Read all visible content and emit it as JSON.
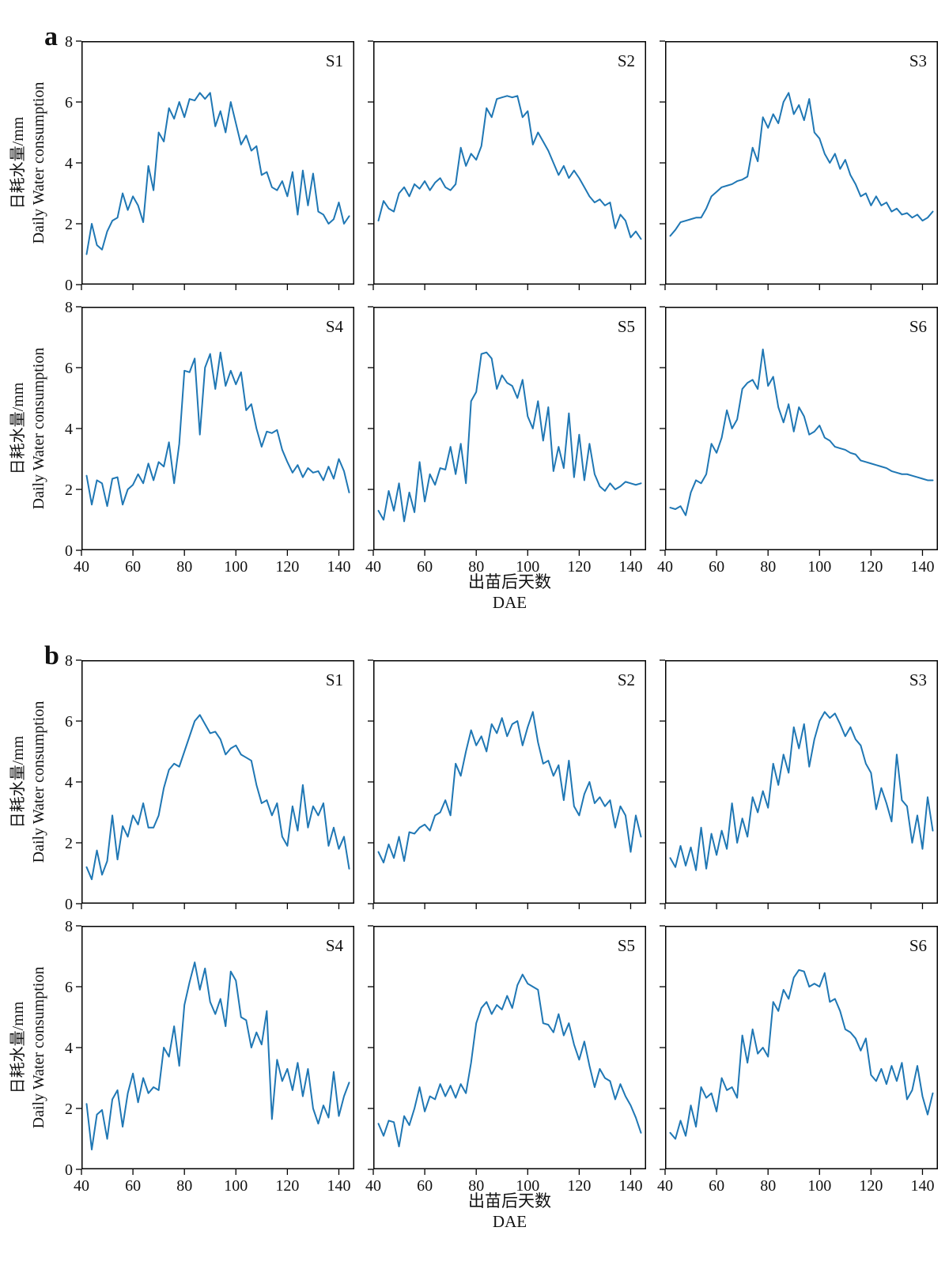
{
  "chart_data": [
    {
      "type": "line",
      "panel_label": "a",
      "xlabel_cn": "出苗后天数",
      "xlabel_en": "DAE",
      "ylabel_cn": "日耗水量/mm",
      "ylabel_en": "Daily Water consumption",
      "xlim": [
        40,
        146
      ],
      "ylim": [
        0,
        8
      ],
      "xticks": [
        40,
        60,
        80,
        100,
        120,
        140
      ],
      "yticks": [
        0,
        2,
        4,
        6,
        8
      ],
      "x_start": 42,
      "x_step": 2,
      "line_color": "#1f77b4",
      "legend": "none",
      "grid": false,
      "subplots": [
        {
          "label": "S1",
          "y": [
            1.0,
            2.0,
            1.3,
            1.15,
            1.75,
            2.1,
            2.2,
            3.0,
            2.45,
            2.9,
            2.6,
            2.05,
            3.9,
            3.1,
            5.0,
            4.7,
            5.8,
            5.45,
            6.0,
            5.5,
            6.1,
            6.05,
            6.3,
            6.1,
            6.3,
            5.2,
            5.7,
            5.0,
            6.0,
            5.3,
            4.6,
            4.9,
            4.4,
            4.55,
            3.6,
            3.7,
            3.2,
            3.1,
            3.4,
            2.9,
            3.7,
            2.3,
            3.75,
            2.6,
            3.65,
            2.4,
            2.3,
            2.0,
            2.15,
            2.7,
            2.0,
            2.25
          ]
        },
        {
          "label": "S2",
          "y": [
            2.1,
            2.75,
            2.5,
            2.4,
            3.0,
            3.2,
            2.9,
            3.3,
            3.15,
            3.4,
            3.1,
            3.35,
            3.5,
            3.2,
            3.1,
            3.3,
            4.5,
            3.9,
            4.3,
            4.1,
            4.55,
            5.8,
            5.5,
            6.1,
            6.15,
            6.2,
            6.15,
            6.2,
            5.5,
            5.7,
            4.6,
            5.0,
            4.7,
            4.4,
            4.0,
            3.6,
            3.9,
            3.5,
            3.75,
            3.5,
            3.2,
            2.9,
            2.7,
            2.8,
            2.6,
            2.7,
            1.85,
            2.3,
            2.1,
            1.55,
            1.75,
            1.5
          ]
        },
        {
          "label": "S3",
          "y": [
            1.6,
            1.8,
            2.05,
            2.1,
            2.15,
            2.2,
            2.2,
            2.5,
            2.9,
            3.05,
            3.2,
            3.25,
            3.3,
            3.4,
            3.45,
            3.55,
            4.5,
            4.05,
            5.5,
            5.15,
            5.6,
            5.3,
            6.0,
            6.3,
            5.6,
            5.9,
            5.4,
            6.1,
            5.0,
            4.8,
            4.3,
            4.0,
            4.3,
            3.8,
            4.1,
            3.6,
            3.3,
            2.9,
            3.0,
            2.6,
            2.9,
            2.6,
            2.7,
            2.4,
            2.5,
            2.3,
            2.35,
            2.2,
            2.3,
            2.1,
            2.2,
            2.4
          ]
        },
        {
          "label": "S4",
          "y": [
            2.45,
            1.5,
            2.3,
            2.2,
            1.45,
            2.35,
            2.4,
            1.5,
            2.0,
            2.15,
            2.5,
            2.2,
            2.85,
            2.3,
            2.9,
            2.75,
            3.55,
            2.2,
            3.5,
            5.9,
            5.85,
            6.3,
            3.8,
            6.0,
            6.45,
            5.3,
            6.5,
            5.4,
            5.9,
            5.45,
            5.85,
            4.6,
            4.8,
            4.0,
            3.4,
            3.9,
            3.85,
            3.95,
            3.3,
            2.9,
            2.55,
            2.8,
            2.4,
            2.7,
            2.55,
            2.6,
            2.3,
            2.75,
            2.35,
            3.0,
            2.6,
            1.9
          ]
        },
        {
          "label": "S5",
          "y": [
            1.3,
            1.0,
            1.95,
            1.3,
            2.2,
            0.95,
            1.9,
            1.25,
            2.9,
            1.6,
            2.5,
            2.15,
            2.7,
            2.65,
            3.4,
            2.5,
            3.5,
            2.2,
            4.9,
            5.2,
            6.45,
            6.5,
            6.3,
            5.3,
            5.75,
            5.5,
            5.4,
            5.0,
            5.6,
            4.4,
            4.0,
            4.9,
            3.6,
            4.7,
            2.6,
            3.4,
            2.7,
            4.5,
            2.4,
            3.8,
            2.3,
            3.5,
            2.5,
            2.1,
            1.95,
            2.2,
            2.0,
            2.1,
            2.25,
            2.2,
            2.15,
            2.2
          ]
        },
        {
          "label": "S6",
          "y": [
            1.4,
            1.35,
            1.45,
            1.15,
            1.9,
            2.3,
            2.2,
            2.5,
            3.5,
            3.2,
            3.7,
            4.6,
            4.0,
            4.3,
            5.3,
            5.5,
            5.6,
            5.3,
            6.6,
            5.4,
            5.7,
            4.7,
            4.2,
            4.8,
            3.9,
            4.7,
            4.4,
            3.8,
            3.9,
            4.1,
            3.7,
            3.6,
            3.4,
            3.35,
            3.3,
            3.2,
            3.15,
            2.95,
            2.9,
            2.85,
            2.8,
            2.75,
            2.7,
            2.6,
            2.55,
            2.5,
            2.5,
            2.45,
            2.4,
            2.35,
            2.3,
            2.3
          ]
        }
      ]
    },
    {
      "type": "line",
      "panel_label": "b",
      "xlabel_cn": "出苗后天数",
      "xlabel_en": "DAE",
      "ylabel_cn": "日耗水量/mm",
      "ylabel_en": "Daily Water consumption",
      "xlim": [
        40,
        146
      ],
      "ylim": [
        0,
        8
      ],
      "xticks": [
        40,
        60,
        80,
        100,
        120,
        140
      ],
      "yticks": [
        0,
        2,
        4,
        6,
        8
      ],
      "x_start": 42,
      "x_step": 2,
      "line_color": "#1f77b4",
      "legend": "none",
      "grid": false,
      "subplots": [
        {
          "label": "S1",
          "y": [
            1.2,
            0.8,
            1.75,
            0.95,
            1.4,
            2.9,
            1.45,
            2.55,
            2.2,
            2.9,
            2.6,
            3.3,
            2.5,
            2.5,
            2.9,
            3.8,
            4.4,
            4.6,
            4.5,
            5.0,
            5.5,
            6.0,
            6.2,
            5.9,
            5.6,
            5.65,
            5.4,
            4.9,
            5.1,
            5.2,
            4.9,
            4.8,
            4.7,
            3.9,
            3.3,
            3.4,
            2.9,
            3.3,
            2.2,
            1.9,
            3.2,
            2.4,
            3.9,
            2.5,
            3.2,
            2.9,
            3.3,
            1.9,
            2.5,
            1.8,
            2.2,
            1.15
          ]
        },
        {
          "label": "S2",
          "y": [
            1.7,
            1.35,
            1.95,
            1.5,
            2.2,
            1.4,
            2.35,
            2.3,
            2.5,
            2.6,
            2.4,
            2.9,
            3.0,
            3.4,
            2.9,
            4.6,
            4.2,
            5.0,
            5.7,
            5.2,
            5.5,
            5.0,
            5.9,
            5.6,
            6.1,
            5.5,
            5.9,
            6.0,
            5.2,
            5.8,
            6.3,
            5.3,
            4.6,
            4.7,
            4.2,
            4.55,
            3.4,
            4.7,
            3.2,
            2.9,
            3.6,
            4.0,
            3.3,
            3.5,
            3.2,
            3.4,
            2.5,
            3.2,
            2.9,
            1.7,
            2.9,
            2.2
          ]
        },
        {
          "label": "S3",
          "y": [
            1.5,
            1.2,
            1.9,
            1.25,
            1.85,
            1.1,
            2.5,
            1.15,
            2.3,
            1.6,
            2.4,
            1.8,
            3.3,
            2.0,
            2.8,
            2.2,
            3.5,
            3.0,
            3.7,
            3.15,
            4.6,
            3.9,
            4.9,
            4.3,
            5.8,
            5.1,
            5.9,
            4.5,
            5.4,
            6.0,
            6.3,
            6.1,
            6.25,
            5.9,
            5.5,
            5.8,
            5.4,
            5.2,
            4.6,
            4.3,
            3.1,
            3.8,
            3.3,
            2.7,
            4.9,
            3.4,
            3.2,
            2.0,
            2.9,
            1.8,
            3.5,
            2.4
          ]
        },
        {
          "label": "S4",
          "y": [
            2.15,
            0.65,
            1.8,
            1.95,
            1.0,
            2.3,
            2.6,
            1.4,
            2.5,
            3.15,
            2.2,
            3.0,
            2.5,
            2.7,
            2.6,
            4.0,
            3.7,
            4.7,
            3.4,
            5.4,
            6.15,
            6.8,
            5.9,
            6.6,
            5.5,
            5.1,
            5.6,
            4.7,
            6.5,
            6.2,
            5.0,
            4.9,
            4.0,
            4.5,
            4.1,
            5.2,
            1.65,
            3.6,
            2.9,
            3.3,
            2.6,
            3.5,
            2.4,
            3.3,
            2.0,
            1.5,
            2.1,
            1.7,
            3.2,
            1.75,
            2.4,
            2.85
          ]
        },
        {
          "label": "S5",
          "y": [
            1.5,
            1.1,
            1.6,
            1.55,
            0.75,
            1.75,
            1.45,
            2.0,
            2.7,
            1.9,
            2.4,
            2.3,
            2.8,
            2.4,
            2.75,
            2.35,
            2.8,
            2.5,
            3.5,
            4.8,
            5.3,
            5.5,
            5.1,
            5.4,
            5.25,
            5.7,
            5.3,
            6.05,
            6.4,
            6.1,
            6.0,
            5.9,
            4.8,
            4.75,
            4.5,
            5.1,
            4.4,
            4.8,
            4.1,
            3.6,
            4.2,
            3.4,
            2.7,
            3.3,
            3.0,
            2.9,
            2.3,
            2.8,
            2.4,
            2.1,
            1.7,
            1.2
          ]
        },
        {
          "label": "S6",
          "y": [
            1.2,
            1.0,
            1.6,
            1.1,
            2.1,
            1.4,
            2.7,
            2.35,
            2.5,
            1.9,
            3.0,
            2.6,
            2.7,
            2.35,
            4.4,
            3.5,
            4.6,
            3.8,
            4.0,
            3.7,
            5.5,
            5.2,
            5.9,
            5.6,
            6.3,
            6.55,
            6.5,
            6.0,
            6.1,
            6.0,
            6.45,
            5.5,
            5.6,
            5.2,
            4.6,
            4.5,
            4.3,
            3.9,
            4.3,
            3.1,
            2.9,
            3.3,
            2.8,
            3.4,
            2.9,
            3.5,
            2.3,
            2.6,
            3.4,
            2.4,
            1.8,
            2.5
          ]
        }
      ]
    }
  ]
}
